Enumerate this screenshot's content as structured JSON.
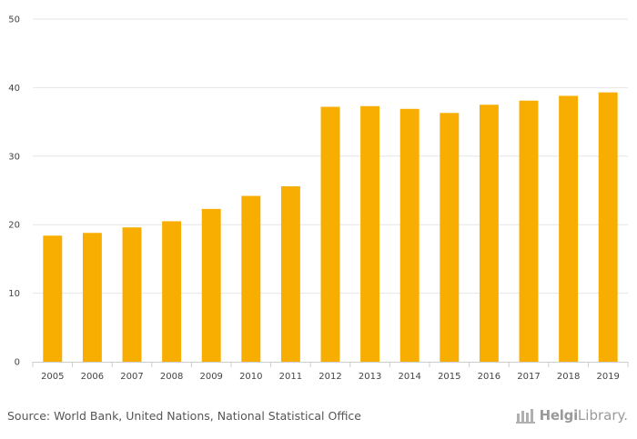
{
  "chart_data": {
    "type": "bar",
    "title": "",
    "xlabel": "",
    "ylabel": "",
    "categories": [
      "2005",
      "2006",
      "2007",
      "2008",
      "2009",
      "2010",
      "2011",
      "2012",
      "2013",
      "2014",
      "2015",
      "2016",
      "2017",
      "2018",
      "2019"
    ],
    "values": [
      18.4,
      18.8,
      19.6,
      20.5,
      22.3,
      24.2,
      25.6,
      37.2,
      37.3,
      36.9,
      36.3,
      37.5,
      38.1,
      38.8,
      39.3
    ],
    "ylim": [
      0,
      50
    ],
    "yticks": [
      0,
      10,
      20,
      30,
      40,
      50
    ],
    "bar_color": "#f8ae00",
    "grid": true
  },
  "footer": {
    "source": "Source: World Bank, United Nations, National Statistical Office",
    "brand_prefix": "Helgi",
    "brand_suffix": "Library."
  },
  "colors": {
    "grid": "#e6e6e6",
    "axis": "#cccccc",
    "text": "#444444"
  }
}
